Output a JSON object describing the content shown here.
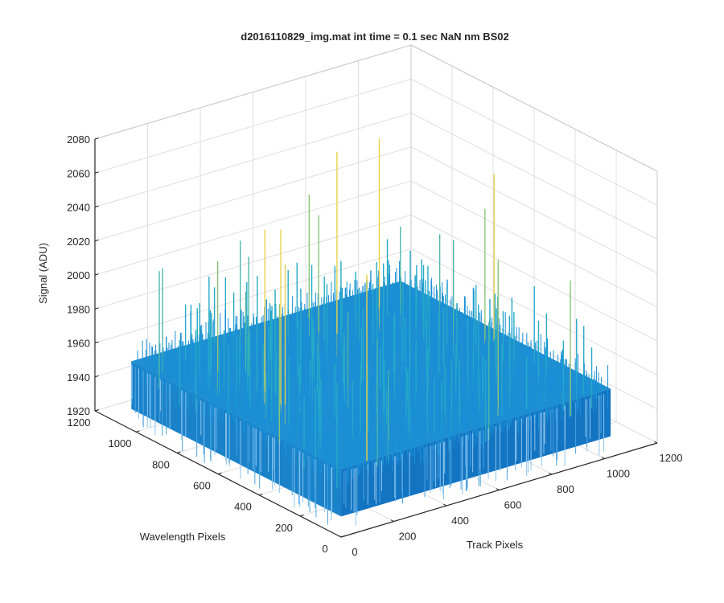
{
  "chart_data": {
    "type": "surface",
    "title": "d2016110829_img.mat int time = 0.1 sec  NaN nm BS02",
    "xlabel": "Track Pixels",
    "ylabel": "Wavelength Pixels",
    "zlabel": "Signal (ADU)",
    "xlim": [
      0,
      1200
    ],
    "ylim": [
      0,
      1200
    ],
    "zlim": [
      1920,
      2080
    ],
    "x_ticks": [
      "0",
      "200",
      "400",
      "600",
      "800",
      "1000",
      "1200"
    ],
    "y_ticks": [
      "0",
      "200",
      "400",
      "600",
      "800",
      "1000",
      "1200"
    ],
    "z_ticks": [
      "1920",
      "1940",
      "1960",
      "1980",
      "2000",
      "2020",
      "2040",
      "2060",
      "2080"
    ],
    "x_range": [
      1,
      1024
    ],
    "y_range": [
      1,
      1024
    ],
    "typical_signal": 1960,
    "max_signal": 2070,
    "min_signal": 1920,
    "grid": true,
    "colormap": [
      "#0072bd",
      "#1a8fd6",
      "#25a9c8",
      "#4cb7a6",
      "#8ec277",
      "#e6d24a"
    ]
  }
}
